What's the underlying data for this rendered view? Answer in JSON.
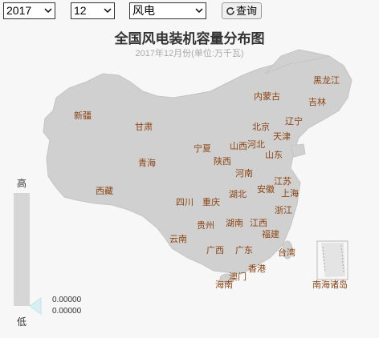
{
  "controls": {
    "year": "2017",
    "month": "12",
    "energy_type": "风电",
    "query_label": "查询"
  },
  "title": "全国风电装机容量分布图",
  "subtitle": "2017年12月份(单位:万千瓦)",
  "legend": {
    "high": "高",
    "low": "低",
    "max_value": "0.00000",
    "min_value": "0.00000"
  },
  "provinces": [
    "黑龙江",
    "吉林",
    "辽宁",
    "内蒙古",
    "新疆",
    "甘肃",
    "北京",
    "天津",
    "河北",
    "山西",
    "宁夏",
    "山东",
    "陕西",
    "青海",
    "河南",
    "江苏",
    "安徽",
    "上海",
    "湖北",
    "西藏",
    "四川",
    "重庆",
    "浙江",
    "江西",
    "湖南",
    "贵州",
    "福建",
    "云南",
    "广西",
    "广东",
    "台湾",
    "香港",
    "澳门",
    "海南",
    "南海诸岛"
  ],
  "colors": {
    "land": "#d0d0d0",
    "label": "#8b4513",
    "background": "#f7f7f7"
  }
}
